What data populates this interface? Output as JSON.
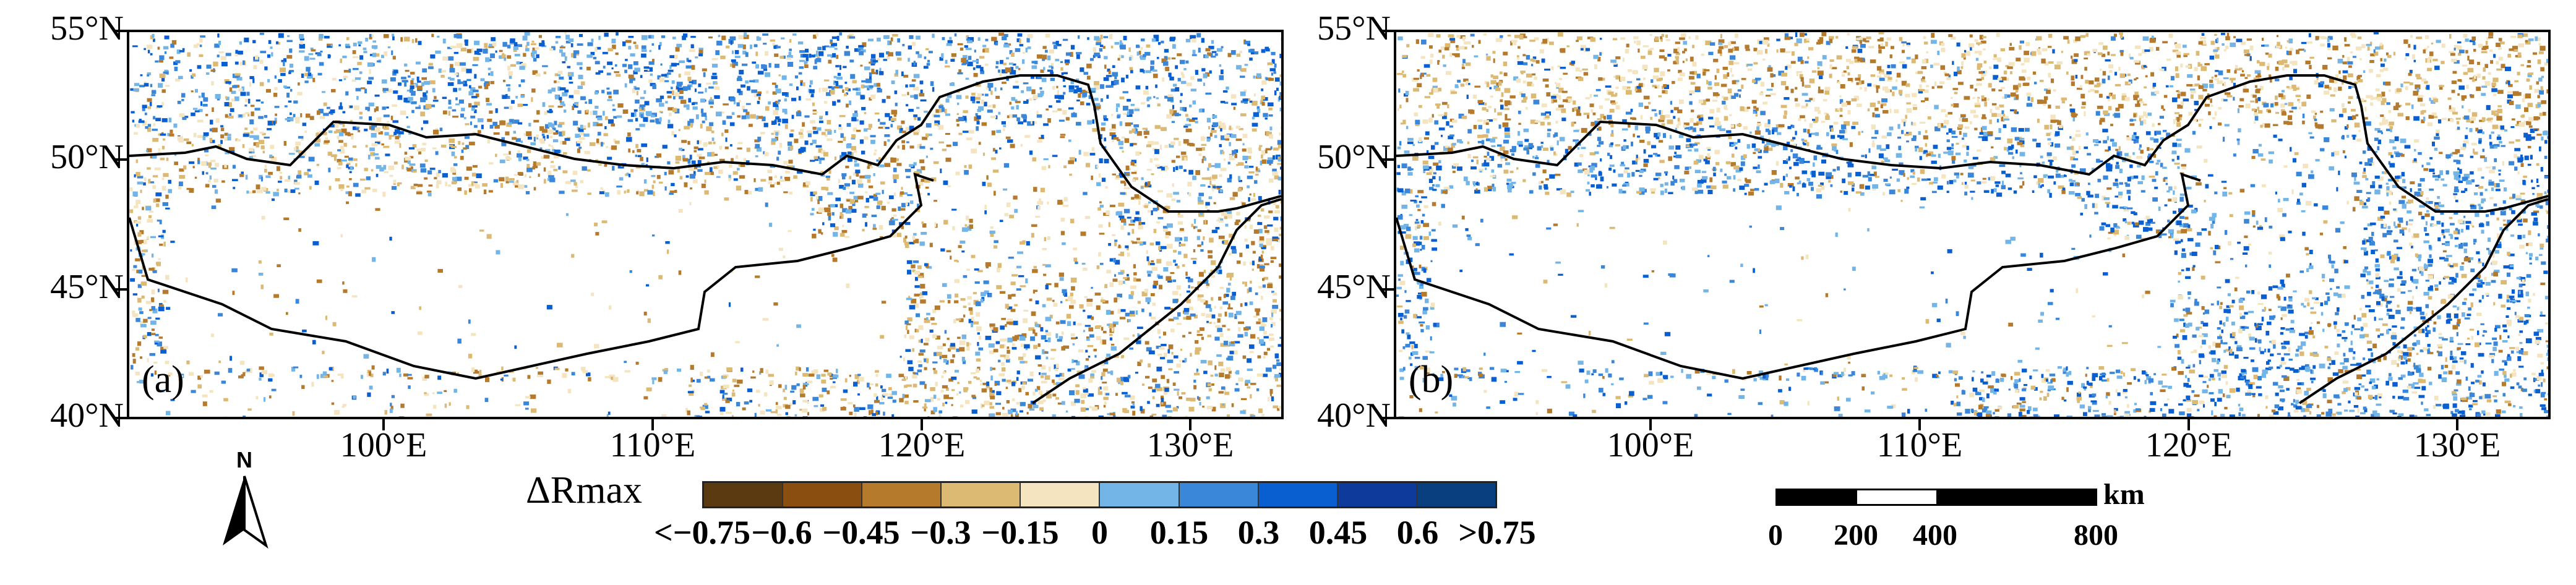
{
  "panels": [
    {
      "id": "a",
      "label": "(a)"
    },
    {
      "id": "b",
      "label": "(b)"
    }
  ],
  "lat_labels": [
    "55°N",
    "50°N",
    "45°N",
    "40°N"
  ],
  "lon_labels": [
    "100°E",
    "110°E",
    "120°E",
    "130°E"
  ],
  "north_label": "N",
  "legend": {
    "title": "ΔRmax",
    "colors": [
      "#5b3a12",
      "#8a4f10",
      "#b57a2c",
      "#dcba74",
      "#f4e4c0",
      "#73b5e6",
      "#3a86d9",
      "#0a5fd0",
      "#0d3a9b",
      "#0a3f7f"
    ],
    "ticks": [
      "<−0.75",
      "−0.6",
      "−0.45",
      "−0.3",
      "−0.15",
      "0",
      "0.15",
      "0.3",
      "0.45",
      "0.6",
      ">0.75"
    ]
  },
  "scale_bar": {
    "unit": "km",
    "ticks": [
      "0",
      "200",
      "400",
      "800"
    ]
  }
}
